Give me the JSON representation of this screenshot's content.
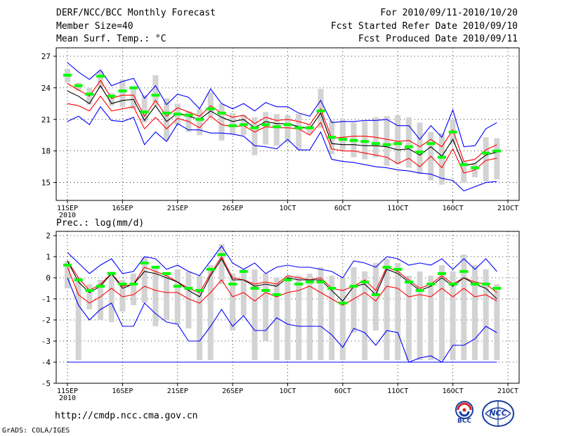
{
  "header": {
    "title": "DERF/NCC/BCC Monthly Forecast",
    "member_size": "Member Size=40",
    "variable": "Mean Surf. Temp.: °C",
    "period": "For 2010/09/11-2010/10/20",
    "started": "Fcst Started Refer Date 2010/09/10",
    "produced": "Fcst Produced Date 2010/09/11"
  },
  "footer": {
    "url": "http://cmdp.ncc.cma.gov.cn",
    "grads": "GrADS: COLA/IGES",
    "logo_bcc": "BCC",
    "logo_ncc": "NCC"
  },
  "colors": {
    "envelope": "#0000ff",
    "spread": "#ff0000",
    "mean": "#000000",
    "box": "#d3d3d3",
    "median": "#00ff00",
    "grid": "#000000"
  },
  "chart_data": [
    {
      "type": "line",
      "title": "Mean Surf. Temp.: °C",
      "x_tick_labels": [
        "11SEP",
        "16SEP",
        "21SEP",
        "26SEP",
        "1OCT",
        "6OCT",
        "11OCT",
        "16OCT",
        "21OCT"
      ],
      "x_year_label": "2010",
      "y_ticks": [
        15,
        18,
        21,
        24,
        27
      ],
      "ylim": [
        13.3,
        27.8
      ],
      "days": 40,
      "series": [
        {
          "name": "max",
          "values": [
            20.8,
            21.3,
            20.5,
            22.2,
            20.9,
            20.8,
            21.2,
            18.6,
            19.8,
            18.9,
            20.6,
            20.0,
            20.0,
            19.7,
            19.7,
            19.6,
            19.4,
            18.5,
            18.4,
            18.2,
            19.1,
            18.1,
            18.1,
            19.8,
            17.2,
            17.0,
            16.9,
            16.7,
            16.5,
            16.4,
            16.2,
            16.1,
            15.9,
            15.8,
            15.4,
            15.2,
            14.2,
            14.6,
            15.0,
            15.1
          ]
        },
        {
          "name": "upper",
          "values": [
            22.5,
            22.3,
            21.8,
            23.2,
            21.8,
            22.0,
            22.2,
            20.1,
            21.2,
            20.1,
            21.1,
            20.8,
            20.2,
            21.3,
            20.5,
            20.3,
            20.4,
            19.8,
            20.3,
            20.2,
            20.2,
            20.1,
            19.5,
            20.7,
            18.2,
            18.0,
            18.0,
            17.8,
            17.6,
            17.4,
            16.8,
            17.3,
            16.5,
            17.5,
            16.4,
            18.2,
            15.9,
            16.2,
            17.1,
            17.3
          ]
        },
        {
          "name": "mean",
          "values": [
            23.7,
            23.2,
            22.5,
            24.2,
            22.5,
            22.8,
            22.9,
            20.9,
            22.3,
            20.8,
            21.6,
            21.3,
            21.0,
            21.8,
            21.2,
            20.8,
            21.0,
            20.2,
            20.8,
            20.6,
            20.6,
            20.3,
            20.1,
            21.6,
            18.7,
            18.6,
            18.6,
            18.5,
            18.5,
            18.4,
            18.1,
            18.2,
            17.6,
            18.4,
            17.5,
            19.1,
            16.6,
            16.8,
            17.6,
            17.9
          ]
        },
        {
          "name": "lower",
          "values": [
            24.4,
            23.8,
            23.2,
            24.7,
            23.0,
            23.3,
            23.3,
            21.3,
            22.8,
            21.3,
            22.1,
            21.7,
            21.3,
            22.3,
            21.6,
            21.2,
            21.4,
            20.6,
            21.2,
            20.9,
            21.0,
            20.8,
            20.5,
            22.0,
            19.2,
            19.3,
            19.4,
            19.4,
            19.3,
            19.1,
            18.9,
            19.0,
            18.4,
            19.1,
            18.4,
            20.0,
            17.0,
            17.2,
            18.1,
            18.6
          ]
        },
        {
          "name": "min",
          "values": [
            26.4,
            25.5,
            24.8,
            25.7,
            24.2,
            24.6,
            24.9,
            23.0,
            24.2,
            22.4,
            23.4,
            23.1,
            22.0,
            23.9,
            22.5,
            22.0,
            22.5,
            21.8,
            22.6,
            22.2,
            22.2,
            21.6,
            21.3,
            22.8,
            20.7,
            20.8,
            20.8,
            20.9,
            20.9,
            21.0,
            20.4,
            20.4,
            19.1,
            20.4,
            19.3,
            21.9,
            18.4,
            18.5,
            20.1,
            20.7
          ]
        },
        {
          "name": "median",
          "values": [
            25.2,
            24.2,
            23.4,
            25.1,
            23.2,
            23.7,
            24.0,
            21.7,
            23.3,
            21.6,
            21.5,
            21.4,
            21.0,
            22.0,
            21.6,
            20.4,
            20.5,
            20.2,
            20.5,
            20.3,
            20.5,
            20.2,
            20.2,
            21.8,
            19.3,
            19.1,
            19.0,
            18.9,
            18.7,
            18.6,
            18.7,
            18.4,
            17.9,
            18.7,
            17.4,
            19.8,
            16.7,
            16.4,
            17.8,
            18.0
          ]
        },
        {
          "name": "box_top",
          "values": [
            25.8,
            24.5,
            24.0,
            25.6,
            23.5,
            24.8,
            24.1,
            23.3,
            25.2,
            23.0,
            22.5,
            21.8,
            22.0,
            23.6,
            22.5,
            21.6,
            21.4,
            21.2,
            21.7,
            21.5,
            21.4,
            21.5,
            20.5,
            23.9,
            20.9,
            21.0,
            20.7,
            20.8,
            21.2,
            21.3,
            21.4,
            21.2,
            20.7,
            19.8,
            19.7,
            21.0,
            17.0,
            16.8,
            19.3,
            19.2
          ]
        },
        {
          "name": "box_bottom",
          "values": [
            24.5,
            23.7,
            22.4,
            23.9,
            22.3,
            22.2,
            22.0,
            20.7,
            22.3,
            19.0,
            20.5,
            19.8,
            19.5,
            21.2,
            19.0,
            19.6,
            19.5,
            17.6,
            18.6,
            18.5,
            18.8,
            18.1,
            19.6,
            20.2,
            17.7,
            18.1,
            17.4,
            17.2,
            17.4,
            16.6,
            16.7,
            16.4,
            15.8,
            15.2,
            14.8,
            18.6,
            15.0,
            15.5,
            15.1,
            15.3
          ]
        }
      ]
    },
    {
      "type": "line",
      "title": "Prec.: log(mm/d)",
      "x_tick_labels": [
        "11SEP",
        "16SEP",
        "21SEP",
        "26SEP",
        "1OCT",
        "6OCT",
        "11OCT",
        "16OCT",
        "21OCT"
      ],
      "x_year_label": "2010",
      "y_ticks": [
        -5,
        -4,
        -3,
        -2,
        -1,
        0,
        1,
        2
      ],
      "ylim": [
        -5,
        2.2
      ],
      "floor": -4,
      "days": 40,
      "series": [
        {
          "name": "max",
          "values": [
            1.2,
            0.7,
            0.2,
            0.6,
            0.9,
            0.2,
            0.3,
            1.0,
            0.9,
            0.4,
            0.6,
            0.3,
            0.1,
            0.8,
            1.5,
            0.7,
            0.4,
            0.7,
            0.2,
            0.5,
            0.6,
            0.5,
            0.5,
            0.4,
            0.3,
            0.0,
            0.8,
            0.7,
            0.5,
            1.0,
            0.9,
            0.6,
            0.7,
            0.6,
            0.9,
            0.4,
            0.9,
            0.4,
            0.9,
            0.3
          ]
        },
        {
          "name": "upper",
          "values": [
            0.8,
            0.0,
            -0.6,
            -0.3,
            0.2,
            -0.4,
            -0.3,
            0.5,
            0.3,
            0.1,
            -0.2,
            -0.5,
            -0.7,
            0.2,
            1.0,
            0.0,
            -0.1,
            -0.3,
            -0.2,
            -0.3,
            0.1,
            0.0,
            -0.1,
            0.0,
            -0.5,
            -0.6,
            -0.4,
            -0.1,
            -0.6,
            0.5,
            0.3,
            -0.1,
            -0.5,
            -0.3,
            0.1,
            -0.3,
            0.0,
            -0.2,
            -0.3,
            -0.7
          ]
        },
        {
          "name": "mean",
          "values": [
            0.8,
            -0.2,
            -0.7,
            -0.4,
            0.2,
            -0.5,
            -0.3,
            0.3,
            0.2,
            0.0,
            -0.2,
            -0.6,
            -0.9,
            0.1,
            0.9,
            -0.1,
            -0.1,
            -0.4,
            -0.3,
            -0.4,
            0.0,
            -0.1,
            -0.1,
            -0.1,
            -0.6,
            -1.1,
            -0.4,
            -0.3,
            -0.8,
            0.4,
            0.2,
            -0.2,
            -0.6,
            -0.4,
            0.0,
            -0.4,
            0.0,
            -0.3,
            -0.5,
            -1.0
          ]
        },
        {
          "name": "lower",
          "values": [
            0.5,
            -0.8,
            -1.2,
            -0.9,
            -0.5,
            -0.9,
            -0.8,
            -0.4,
            -0.6,
            -0.7,
            -0.7,
            -1.0,
            -1.2,
            -0.7,
            -0.1,
            -0.9,
            -0.7,
            -1.1,
            -0.7,
            -0.9,
            -0.7,
            -0.6,
            -0.4,
            -0.7,
            -1.0,
            -1.3,
            -1.0,
            -0.7,
            -1.1,
            -0.4,
            -0.5,
            -0.9,
            -0.8,
            -0.9,
            -0.5,
            -0.9,
            -0.5,
            -0.9,
            -0.8,
            -1.1
          ]
        },
        {
          "name": "min",
          "values": [
            0.0,
            -1.3,
            -2.0,
            -1.5,
            -1.2,
            -2.3,
            -2.3,
            -1.2,
            -1.7,
            -2.1,
            -2.2,
            -3.0,
            -3.0,
            -2.3,
            -1.5,
            -2.3,
            -1.8,
            -2.5,
            -2.5,
            -1.9,
            -2.2,
            -2.3,
            -2.3,
            -2.3,
            -2.7,
            -3.3,
            -2.4,
            -2.6,
            -3.2,
            -2.5,
            -2.6,
            -4.0,
            -3.8,
            -3.7,
            -4.0,
            -3.2,
            -3.2,
            -2.9,
            -2.3,
            -2.6
          ]
        },
        {
          "name": "median",
          "values": [
            0.6,
            -0.1,
            -0.6,
            -0.4,
            0.2,
            -0.3,
            -0.3,
            0.7,
            0.5,
            0.2,
            -0.4,
            -0.5,
            -0.6,
            0.4,
            1.1,
            -0.3,
            0.3,
            -0.5,
            -0.6,
            -0.8,
            -0.1,
            -0.3,
            -0.2,
            -0.2,
            -0.5,
            -1.2,
            -0.4,
            -0.2,
            -0.8,
            0.5,
            0.4,
            -0.2,
            -0.6,
            -0.3,
            0.2,
            -0.3,
            0.3,
            -0.3,
            -0.3,
            -0.5
          ]
        },
        {
          "name": "box_top",
          "values": [
            0.8,
            0.0,
            -0.3,
            -0.1,
            0.3,
            -0.1,
            0.2,
            1.0,
            0.5,
            0.2,
            0.4,
            0.3,
            0.1,
            0.6,
            1.6,
            0.2,
            0.4,
            0.4,
            0.2,
            0.0,
            0.1,
            0.1,
            0.2,
            0.5,
            0.1,
            0.0,
            0.5,
            0.3,
            0.7,
            0.9,
            0.7,
            0.1,
            0.3,
            0.1,
            0.6,
            0.3,
            1.1,
            0.6,
            0.4,
            -0.3
          ]
        },
        {
          "name": "box_bottom",
          "values": [
            -0.5,
            -3.9,
            -1.5,
            -2.0,
            -2.1,
            -1.6,
            -1.3,
            -1.2,
            -2.3,
            -2.0,
            -2.2,
            -2.4,
            -3.9,
            -3.9,
            -0.3,
            -2.5,
            -1.8,
            -3.9,
            -3.0,
            -3.9,
            -3.9,
            -3.9,
            -3.9,
            -3.9,
            -3.9,
            -3.9,
            -2.6,
            -3.9,
            -2.5,
            -3.9,
            -3.9,
            -3.9,
            -3.9,
            -3.9,
            -3.9,
            -3.9,
            -3.9,
            -3.9,
            -3.9,
            -3.9
          ]
        }
      ]
    }
  ]
}
